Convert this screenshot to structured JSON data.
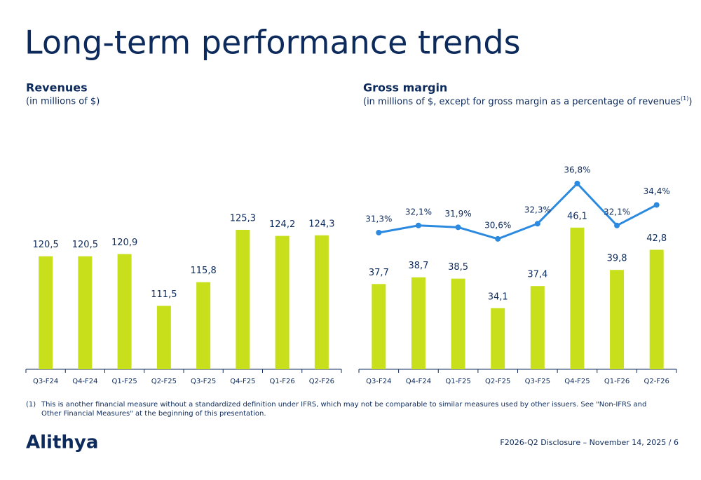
{
  "title": "Long-term performance trends",
  "chart_data": [
    {
      "type": "bar",
      "title": "Revenues",
      "subtitle": "(in millions of $)",
      "categories": [
        "Q3-F24",
        "Q4-F24",
        "Q1-F25",
        "Q2-F25",
        "Q3-F25",
        "Q4-F25",
        "Q1-F26",
        "Q2-F26"
      ],
      "values": [
        120.5,
        120.5,
        120.9,
        111.5,
        115.8,
        125.3,
        124.2,
        124.3
      ],
      "value_labels": [
        "120,5",
        "120,5",
        "120,9",
        "111,5",
        "115,8",
        "125,3",
        "124,2",
        "124,3"
      ],
      "color": "#c8e01c",
      "ylim": [
        100,
        130
      ]
    },
    {
      "type": "combo",
      "title": "Gross margin",
      "subtitle_parts": [
        "(in millions of $, except for gross margin as a percentage of revenues",
        "(1)",
        ")"
      ],
      "categories": [
        "Q3-F24",
        "Q4-F24",
        "Q1-F25",
        "Q2-F25",
        "Q3-F25",
        "Q4-F25",
        "Q1-F26",
        "Q2-F26"
      ],
      "series": [
        {
          "type": "bar",
          "color": "#c8e01c",
          "values": [
            37.7,
            38.7,
            38.5,
            34.1,
            37.4,
            46.1,
            39.8,
            42.8
          ],
          "value_labels": [
            "37,7",
            "38,7",
            "38,5",
            "34,1",
            "37,4",
            "46,1",
            "39,8",
            "42,8"
          ]
        },
        {
          "type": "line",
          "axis": "y2",
          "color": "#2b8ae0",
          "values": [
            31.3,
            32.1,
            31.9,
            30.6,
            32.3,
            36.8,
            32.1,
            34.4
          ],
          "value_labels": [
            "31,3%",
            "32,1%",
            "31,9%",
            "30,6%",
            "32,3%",
            "36,8%",
            "32,1%",
            "34,4%"
          ]
        }
      ],
      "ylim": [
        25,
        56
      ],
      "y2lim": [
        16,
        39.3
      ]
    }
  ],
  "footnote": {
    "marker": "(1)",
    "text": "This is another financial measure without a standardized definition under IFRS, which may not be comparable to similar measures used by other issuers. See \"Non-IFRS and Other Financial Measures\" at the beginning of this presentation."
  },
  "logo": "Alithya",
  "footer": "F2026-Q2 Disclosure – November 14, 2025 / 6"
}
